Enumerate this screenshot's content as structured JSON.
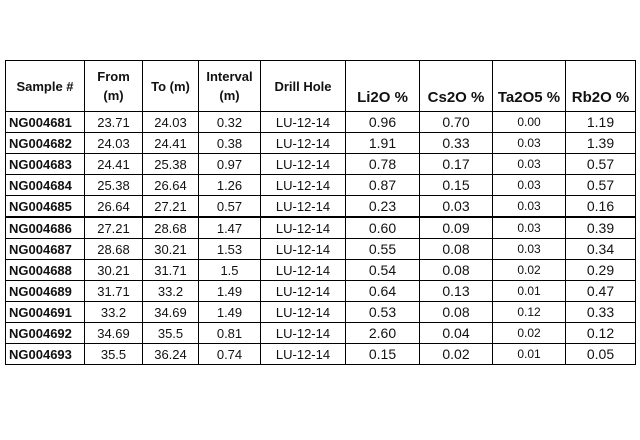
{
  "headers": {
    "sample": "Sample #",
    "from_line1": "From",
    "from_line2": "(m)",
    "to": "To (m)",
    "interval_line1": "Interval",
    "interval_line2": "(m)",
    "drill_hole": "Drill Hole",
    "li2o": "Li2O %",
    "cs2o": "Cs2O %",
    "ta2o5": "Ta2O5 %",
    "rb2o": "Rb2O %"
  },
  "rows": [
    {
      "sample": "NG004681",
      "from": "23.71",
      "to": "24.03",
      "interval": "0.32",
      "hole": "LU-12-14",
      "li2o": "0.96",
      "cs2o": "0.70",
      "ta2o5": "0.00",
      "rb2o": "1.19"
    },
    {
      "sample": "NG004682",
      "from": "24.03",
      "to": "24.41",
      "interval": "0.38",
      "hole": "LU-12-14",
      "li2o": "1.91",
      "cs2o": "0.33",
      "ta2o5": "0.03",
      "rb2o": "1.39"
    },
    {
      "sample": "NG004683",
      "from": "24.41",
      "to": "25.38",
      "interval": "0.97",
      "hole": "LU-12-14",
      "li2o": "0.78",
      "cs2o": "0.17",
      "ta2o5": "0.03",
      "rb2o": "0.57"
    },
    {
      "sample": "NG004684",
      "from": "25.38",
      "to": "26.64",
      "interval": "1.26",
      "hole": "LU-12-14",
      "li2o": "0.87",
      "cs2o": "0.15",
      "ta2o5": "0.03",
      "rb2o": "0.57"
    },
    {
      "sample": "NG004685",
      "from": "26.64",
      "to": "27.21",
      "interval": "0.57",
      "hole": "LU-12-14",
      "li2o": "0.23",
      "cs2o": "0.03",
      "ta2o5": "0.03",
      "rb2o": "0.16"
    },
    {
      "sample": "NG004686",
      "from": "27.21",
      "to": "28.68",
      "interval": "1.47",
      "hole": "LU-12-14",
      "li2o": "0.60",
      "cs2o": "0.09",
      "ta2o5": "0.03",
      "rb2o": "0.39"
    },
    {
      "sample": "NG004687",
      "from": "28.68",
      "to": "30.21",
      "interval": "1.53",
      "hole": "LU-12-14",
      "li2o": "0.55",
      "cs2o": "0.08",
      "ta2o5": "0.03",
      "rb2o": "0.34"
    },
    {
      "sample": "NG004688",
      "from": "30.21",
      "to": "31.71",
      "interval": "1.5",
      "hole": "LU-12-14",
      "li2o": "0.54",
      "cs2o": "0.08",
      "ta2o5": "0.02",
      "rb2o": "0.29"
    },
    {
      "sample": "NG004689",
      "from": "31.71",
      "to": "33.2",
      "interval": "1.49",
      "hole": "LU-12-14",
      "li2o": "0.64",
      "cs2o": "0.13",
      "ta2o5": "0.01",
      "rb2o": "0.47"
    },
    {
      "sample": "NG004691",
      "from": "33.2",
      "to": "34.69",
      "interval": "1.49",
      "hole": "LU-12-14",
      "li2o": "0.53",
      "cs2o": "0.08",
      "ta2o5": "0.12",
      "rb2o": "0.33"
    },
    {
      "sample": "NG004692",
      "from": "34.69",
      "to": "35.5",
      "interval": "0.81",
      "hole": "LU-12-14",
      "li2o": "2.60",
      "cs2o": "0.04",
      "ta2o5": "0.02",
      "rb2o": "0.12"
    },
    {
      "sample": "NG004693",
      "from": "35.5",
      "to": "36.24",
      "interval": "0.74",
      "hole": "LU-12-14",
      "li2o": "0.15",
      "cs2o": "0.02",
      "ta2o5": "0.01",
      "rb2o": "0.05"
    }
  ]
}
